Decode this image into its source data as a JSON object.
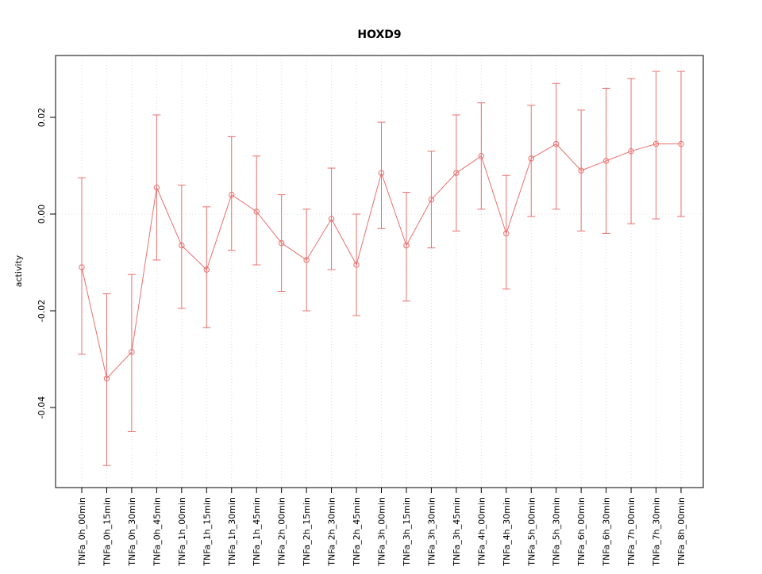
{
  "chart_data": {
    "type": "line",
    "title": "HOXD9",
    "xlabel": "",
    "ylabel": "activity",
    "legend": "none",
    "marker": "open-circle",
    "error_bars": true,
    "ylim": [
      -0.056,
      0.033
    ],
    "yticks": [
      -0.04,
      -0.02,
      0,
      0.02
    ],
    "grid": {
      "vertical_dotted_per_category": true,
      "horizontal_dotted_zero_line": true
    },
    "colors": {
      "series": "#e9706e",
      "grid": "#dcdcdc",
      "axis": "#000000",
      "background": "#ffffff"
    },
    "categories": [
      "TNFa_0h_00min",
      "TNFa_0h_15min",
      "TNFa_0h_30min",
      "TNFa_0h_45min",
      "TNFa_1h_00min",
      "TNFa_1h_15min",
      "TNFa_1h_30min",
      "TNFa_1h_45min",
      "TNFa_2h_00min",
      "TNFa_2h_15min",
      "TNFa_2h_30min",
      "TNFa_2h_45min",
      "TNFa_3h_00min",
      "TNFa_3h_15min",
      "TNFa_3h_30min",
      "TNFa_3h_45min",
      "TNFa_4h_00min",
      "TNFa_4h_30min",
      "TNFa_5h_00min",
      "TNFa_5h_30min",
      "TNFa_6h_00min",
      "TNFa_6h_30min",
      "TNFa_7h_00min",
      "TNFa_7h_30min",
      "TNFa_8h_00min"
    ],
    "values": [
      -0.011,
      -0.034,
      -0.0285,
      0.0055,
      -0.0065,
      -0.0115,
      0.004,
      0.0005,
      -0.006,
      -0.0095,
      -0.001,
      -0.0105,
      0.0085,
      -0.0065,
      0.003,
      0.0085,
      0.012,
      -0.004,
      0.0115,
      0.0145,
      0.009,
      0.011,
      0.013,
      0.0145,
      0.0145
    ],
    "error_upper": [
      0.0075,
      -0.0165,
      -0.0125,
      0.0205,
      0.006,
      0.0015,
      0.016,
      0.012,
      0.004,
      0.001,
      0.0095,
      0.0,
      0.019,
      0.0045,
      0.013,
      0.0205,
      0.023,
      0.008,
      0.0225,
      0.027,
      0.0215,
      0.026,
      0.028,
      0.0295,
      0.0295
    ],
    "error_lower": [
      -0.029,
      -0.052,
      -0.045,
      -0.0095,
      -0.0195,
      -0.0235,
      -0.0075,
      -0.0105,
      -0.016,
      -0.02,
      -0.0115,
      -0.021,
      -0.003,
      -0.018,
      -0.007,
      -0.0035,
      0.001,
      -0.0155,
      -0.0005,
      0.001,
      -0.0035,
      -0.004,
      -0.002,
      -0.001,
      -0.0005
    ]
  }
}
